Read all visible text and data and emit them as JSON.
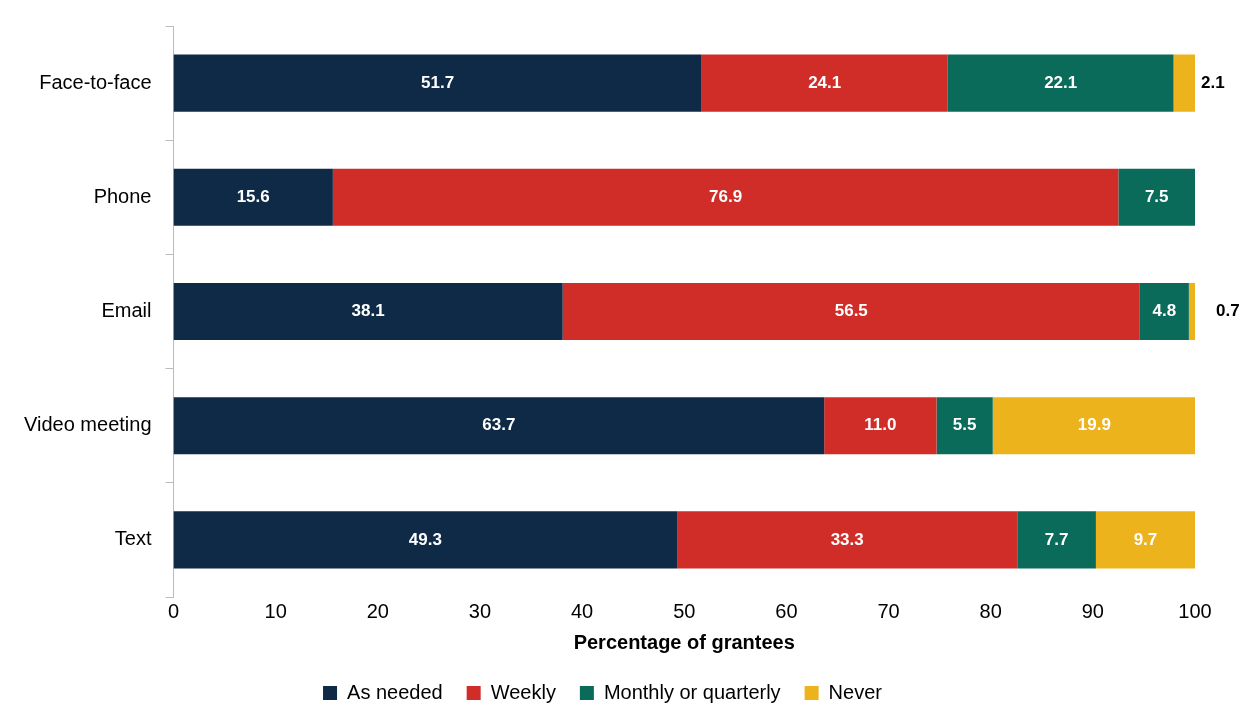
{
  "chart_data": {
    "type": "bar",
    "orientation": "horizontal",
    "stacked": true,
    "xlabel": "Percentage of grantees",
    "categories": [
      "Face-to-face",
      "Phone",
      "Email",
      "Video meeting",
      "Text"
    ],
    "series": [
      {
        "name": "As needed",
        "color": "#0e2a47",
        "values": [
          51.7,
          15.6,
          38.1,
          63.7,
          49.3
        ],
        "value_labels": [
          "51.7",
          "15.6",
          "38.1",
          "63.7",
          "49.3"
        ]
      },
      {
        "name": "Weekly",
        "color": "#d12d28",
        "values": [
          24.1,
          76.9,
          56.5,
          11.0,
          33.3
        ],
        "value_labels": [
          "24.1",
          "76.9",
          "56.5",
          "11.0",
          "33.3"
        ]
      },
      {
        "name": "Monthly or quarterly",
        "color": "#0a6b5a",
        "values": [
          22.1,
          7.5,
          4.8,
          5.5,
          7.7
        ],
        "value_labels": [
          "22.1",
          "7.5",
          "4.8",
          "5.5",
          "7.7"
        ]
      },
      {
        "name": "Never",
        "color": "#ecb31d",
        "values": [
          2.1,
          null,
          0.7,
          19.9,
          9.7
        ],
        "value_labels": [
          "2.1",
          null,
          "0.7",
          "19.9",
          "9.7"
        ]
      }
    ],
    "xlim": [
      0,
      100
    ],
    "xticks": [
      0,
      10,
      20,
      30,
      40,
      50,
      60,
      70,
      80,
      90,
      100
    ],
    "legend": "bottom",
    "grid": false
  }
}
